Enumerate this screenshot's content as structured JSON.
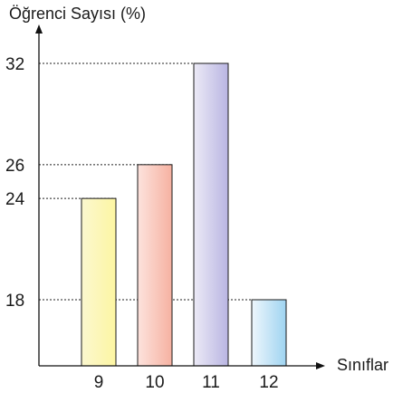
{
  "chart_data": {
    "type": "bar",
    "ylabel": "Öğrenci Sayısı (%)",
    "xlabel": "Sınıflar",
    "categories": [
      "9",
      "10",
      "11",
      "12"
    ],
    "values": [
      24,
      26,
      32,
      18
    ],
    "yticks": [
      18,
      24,
      26,
      32
    ],
    "ylim": [
      12,
      32
    ],
    "grid": false,
    "bar_colors": [
      [
        "#fbf7cf",
        "#fdf6a2"
      ],
      [
        "#fde3dd",
        "#f6b1a1"
      ],
      [
        "#eceaf6",
        "#b9b5e2"
      ],
      [
        "#eef6fc",
        "#9fd4f1"
      ]
    ],
    "guide_color": "#222222"
  }
}
